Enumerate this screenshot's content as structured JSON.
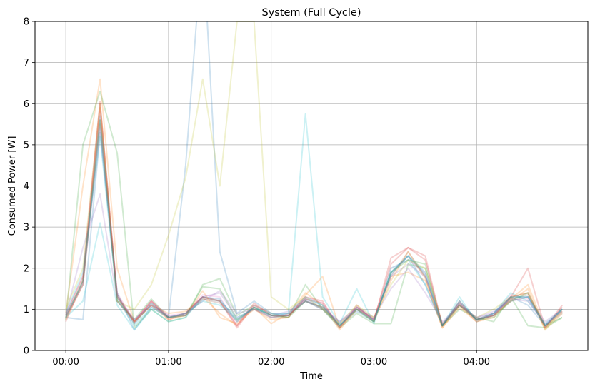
{
  "chart_data": {
    "type": "line",
    "title": "System (Full Cycle)",
    "xlabel": "Time",
    "ylabel": "Consumed Power [W]",
    "x_unit": "minutes",
    "xlim": [
      -18,
      305
    ],
    "ylim": [
      0,
      8
    ],
    "x_ticks": [
      {
        "value": 0,
        "label": "00:00"
      },
      {
        "value": 60,
        "label": "01:00"
      },
      {
        "value": 120,
        "label": "02:00"
      },
      {
        "value": 180,
        "label": "03:00"
      },
      {
        "value": 240,
        "label": "04:00"
      }
    ],
    "y_ticks": [
      0,
      1,
      2,
      3,
      4,
      5,
      6,
      7,
      8
    ],
    "grid": true,
    "line_alpha": 0.22,
    "x": [
      0,
      10,
      20,
      30,
      40,
      50,
      60,
      70,
      80,
      90,
      100,
      110,
      120,
      130,
      140,
      150,
      160,
      170,
      180,
      190,
      200,
      210,
      220,
      230,
      240,
      250,
      260,
      270,
      280,
      290
    ],
    "series": [
      {
        "color": "#1f77b4",
        "values": [
          0.8,
          0.75,
          5.3,
          1.4,
          0.5,
          1.05,
          0.8,
          4.5,
          10.0,
          2.4,
          0.9,
          1.2,
          0.9,
          0.85,
          1.2,
          1.0,
          0.6,
          0.95,
          0.7,
          1.9,
          2.3,
          1.6,
          0.6,
          1.2,
          0.75,
          0.9,
          1.3,
          1.1,
          0.6,
          1.0
        ]
      },
      {
        "color": "#ff7f0e",
        "values": [
          0.9,
          4.0,
          6.6,
          2.0,
          0.7,
          1.1,
          0.9,
          0.95,
          1.3,
          0.9,
          0.6,
          1.05,
          0.65,
          0.9,
          1.4,
          1.1,
          0.5,
          1.0,
          0.8,
          1.8,
          1.9,
          1.7,
          0.55,
          1.1,
          0.7,
          0.85,
          1.2,
          1.5,
          0.5,
          0.9
        ]
      },
      {
        "color": "#2ca02c",
        "values": [
          0.75,
          5.0,
          6.3,
          4.8,
          0.55,
          1.0,
          0.7,
          0.8,
          1.6,
          1.75,
          0.85,
          1.1,
          0.9,
          0.8,
          1.6,
          1.0,
          0.55,
          0.9,
          0.65,
          0.65,
          2.1,
          2.0,
          0.6,
          1.0,
          0.8,
          0.7,
          1.3,
          0.6,
          0.55,
          0.8
        ]
      },
      {
        "color": "#d62728",
        "values": [
          0.7,
          1.7,
          6.0,
          1.2,
          0.7,
          1.2,
          0.75,
          0.9,
          1.3,
          1.2,
          0.55,
          1.1,
          0.85,
          0.8,
          1.3,
          1.2,
          0.55,
          1.1,
          0.7,
          2.25,
          2.5,
          2.3,
          0.6,
          1.2,
          0.75,
          0.9,
          1.3,
          2.0,
          0.55,
          1.1
        ]
      },
      {
        "color": "#9467bd",
        "values": [
          0.85,
          2.5,
          3.8,
          1.2,
          0.75,
          1.1,
          0.8,
          0.9,
          1.2,
          1.45,
          0.9,
          1.0,
          0.85,
          0.95,
          1.25,
          1.0,
          0.7,
          1.05,
          0.8,
          1.5,
          2.0,
          1.4,
          0.7,
          1.1,
          0.8,
          0.95,
          1.2,
          1.3,
          0.7,
          1.0
        ]
      },
      {
        "color": "#8c564b",
        "values": [
          0.8,
          1.6,
          5.6,
          1.3,
          0.65,
          1.15,
          0.8,
          0.85,
          1.25,
          1.15,
          0.7,
          1.05,
          0.8,
          0.85,
          1.2,
          1.05,
          0.65,
          1.0,
          0.75,
          1.8,
          2.4,
          1.8,
          0.6,
          1.1,
          0.75,
          0.85,
          1.25,
          1.35,
          0.6,
          0.95
        ]
      },
      {
        "color": "#e377c2",
        "values": [
          0.9,
          1.8,
          5.8,
          1.4,
          0.7,
          1.2,
          0.85,
          0.9,
          1.35,
          1.3,
          0.6,
          1.1,
          0.9,
          0.9,
          1.3,
          1.15,
          0.6,
          1.05,
          0.75,
          2.0,
          2.2,
          1.9,
          0.65,
          1.15,
          0.7,
          0.9,
          1.35,
          1.25,
          0.6,
          1.0
        ]
      },
      {
        "color": "#7f7f7f",
        "values": [
          0.8,
          1.7,
          5.5,
          1.3,
          0.7,
          1.1,
          0.8,
          0.85,
          1.25,
          1.2,
          0.75,
          1.0,
          0.8,
          0.85,
          1.2,
          1.0,
          0.6,
          1.0,
          0.7,
          1.9,
          2.3,
          1.8,
          0.6,
          1.1,
          0.75,
          0.85,
          1.2,
          1.3,
          0.6,
          0.9
        ]
      },
      {
        "color": "#bcbd22",
        "values": [
          1.0,
          2.0,
          6.0,
          1.2,
          1.0,
          1.6,
          2.8,
          4.2,
          6.6,
          4.0,
          8.0,
          8.0,
          1.3,
          1.0,
          1.3,
          1.0,
          0.65,
          1.1,
          0.8,
          1.6,
          2.2,
          2.0,
          0.65,
          1.1,
          0.8,
          1.0,
          1.3,
          1.4,
          0.5,
          1.0
        ]
      },
      {
        "color": "#17becf",
        "values": [
          0.8,
          1.2,
          3.1,
          1.1,
          0.5,
          1.0,
          0.7,
          0.8,
          1.3,
          1.2,
          0.8,
          1.0,
          0.9,
          0.9,
          5.75,
          1.3,
          0.65,
          1.5,
          0.65,
          2.0,
          2.2,
          1.6,
          0.6,
          1.3,
          0.7,
          0.9,
          1.4,
          1.2,
          0.65,
          1.0
        ]
      },
      {
        "color": "#1f77b4",
        "values": [
          0.85,
          1.65,
          5.7,
          1.35,
          0.65,
          1.15,
          0.8,
          0.9,
          1.3,
          1.25,
          0.7,
          1.05,
          0.85,
          0.85,
          1.25,
          1.1,
          0.6,
          1.05,
          0.75,
          1.85,
          2.3,
          1.85,
          0.6,
          1.15,
          0.75,
          0.85,
          1.3,
          1.3,
          0.6,
          1.0
        ]
      },
      {
        "color": "#ff7f0e",
        "values": [
          0.75,
          1.6,
          5.9,
          1.3,
          0.7,
          1.1,
          0.75,
          0.85,
          1.45,
          0.8,
          0.65,
          1.0,
          0.75,
          0.8,
          1.35,
          1.8,
          0.55,
          1.0,
          0.7,
          1.7,
          2.4,
          1.75,
          0.55,
          1.05,
          0.7,
          0.8,
          1.25,
          1.6,
          0.55,
          0.95
        ]
      },
      {
        "color": "#2ca02c",
        "values": [
          0.8,
          1.7,
          5.6,
          1.2,
          0.75,
          1.25,
          0.8,
          0.85,
          1.55,
          1.5,
          0.75,
          1.05,
          0.85,
          0.8,
          1.2,
          1.05,
          0.6,
          1.0,
          0.7,
          1.9,
          2.2,
          2.1,
          0.6,
          1.1,
          0.75,
          0.8,
          1.2,
          1.4,
          0.6,
          0.8
        ]
      },
      {
        "color": "#d62728",
        "values": [
          0.85,
          1.8,
          6.05,
          1.35,
          0.7,
          1.2,
          0.8,
          0.9,
          1.3,
          1.2,
          0.6,
          1.15,
          0.85,
          0.85,
          1.25,
          1.15,
          0.55,
          1.05,
          0.75,
          2.1,
          2.5,
          2.2,
          0.6,
          1.15,
          0.75,
          0.85,
          1.3,
          1.4,
          0.55,
          1.05
        ]
      },
      {
        "color": "#9467bd",
        "values": [
          0.8,
          1.6,
          5.4,
          1.3,
          0.75,
          1.1,
          0.85,
          0.85,
          1.3,
          1.4,
          0.8,
          1.0,
          0.8,
          0.9,
          1.2,
          1.05,
          0.7,
          1.0,
          0.75,
          1.8,
          2.1,
          1.8,
          0.65,
          1.1,
          0.8,
          0.9,
          1.25,
          1.2,
          0.65,
          0.95
        ]
      },
      {
        "color": "#17becf",
        "values": [
          0.9,
          1.9,
          5.2,
          1.25,
          0.6,
          1.05,
          0.8,
          0.9,
          1.2,
          1.1,
          0.75,
          1.05,
          0.85,
          0.9,
          1.3,
          1.1,
          0.6,
          1.0,
          0.7,
          1.9,
          2.3,
          1.9,
          0.6,
          1.2,
          0.75,
          0.9,
          1.3,
          1.3,
          0.6,
          1.0
        ]
      }
    ]
  }
}
